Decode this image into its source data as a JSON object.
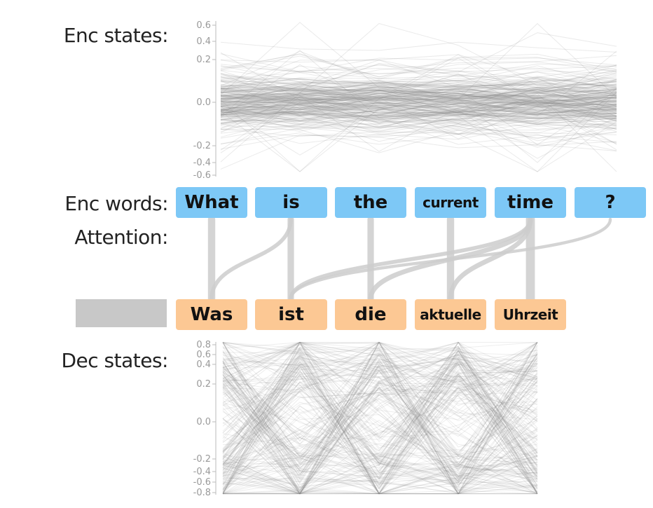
{
  "labels": {
    "enc_states": "Enc states:",
    "enc_words": "Enc words:",
    "attention": "Attention:",
    "dec_states": "Dec states:"
  },
  "enc_words": [
    "What",
    "is",
    "the",
    "current",
    "time",
    "?"
  ],
  "dec_words": [
    "Was",
    "ist",
    "die",
    "aktuelle",
    "Uhrzeit"
  ],
  "enc_axis_ticks": [
    "0.6",
    "0.4",
    "0.2",
    "0.0",
    "-0.2",
    "-0.4",
    "-0.6"
  ],
  "dec_axis_ticks": [
    "0.8",
    "0.6",
    "0.4",
    "0.2",
    "0.0",
    "-0.2",
    "-0.4",
    "-0.6",
    "-0.8"
  ],
  "attention": [
    {
      "dec": 0,
      "enc": 0,
      "weight": 0.7
    },
    {
      "dec": 0,
      "enc": 1,
      "weight": 0.3
    },
    {
      "dec": 1,
      "enc": 1,
      "weight": 0.6
    },
    {
      "dec": 1,
      "enc": 4,
      "weight": 0.3
    },
    {
      "dec": 1,
      "enc": 5,
      "weight": 0.2
    },
    {
      "dec": 2,
      "enc": 2,
      "weight": 0.6
    },
    {
      "dec": 2,
      "enc": 4,
      "weight": 0.4
    },
    {
      "dec": 3,
      "enc": 3,
      "weight": 0.7
    },
    {
      "dec": 3,
      "enc": 4,
      "weight": 0.4
    },
    {
      "dec": 4,
      "enc": 4,
      "weight": 0.9
    }
  ],
  "colors": {
    "enc_box": "#7dc8f6",
    "dec_box": "#fcc894",
    "lines": "#888888",
    "attention": "#cccccc"
  }
}
